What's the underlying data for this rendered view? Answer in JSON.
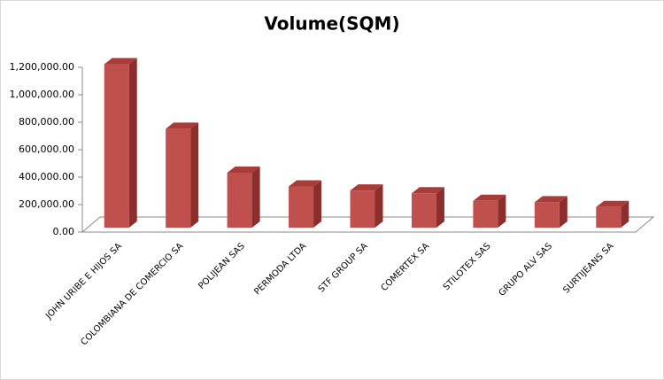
{
  "chart_data": {
    "type": "bar3d",
    "title": "Volume(SQM)",
    "categories": [
      "JOHN URIBE E HIJOS SA",
      "COLOMBIANA DE COMERCIO SA",
      "POLIJEAN SAS",
      "PERMODA LTDA",
      "STF GROUP SA",
      "COMERTEX SA",
      "STILOTEX SAS",
      "GRUPO ALV SAS",
      "SURTIJEANS SA"
    ],
    "values": [
      1190000,
      720000,
      400000,
      300000,
      270000,
      250000,
      195000,
      185000,
      150000
    ],
    "color": "#c0504d",
    "ylim": [
      0,
      1200000
    ],
    "yticks": [
      {
        "value": 0,
        "label": "0.00"
      },
      {
        "value": 200000,
        "label": "200,000.00"
      },
      {
        "value": 400000,
        "label": "400,000.00"
      },
      {
        "value": 600000,
        "label": "600,000.00"
      },
      {
        "value": 800000,
        "label": "800,000.00"
      },
      {
        "value": 1000000,
        "label": "1,000,000.00"
      },
      {
        "value": 1200000,
        "label": "1,200,000.00"
      }
    ]
  }
}
